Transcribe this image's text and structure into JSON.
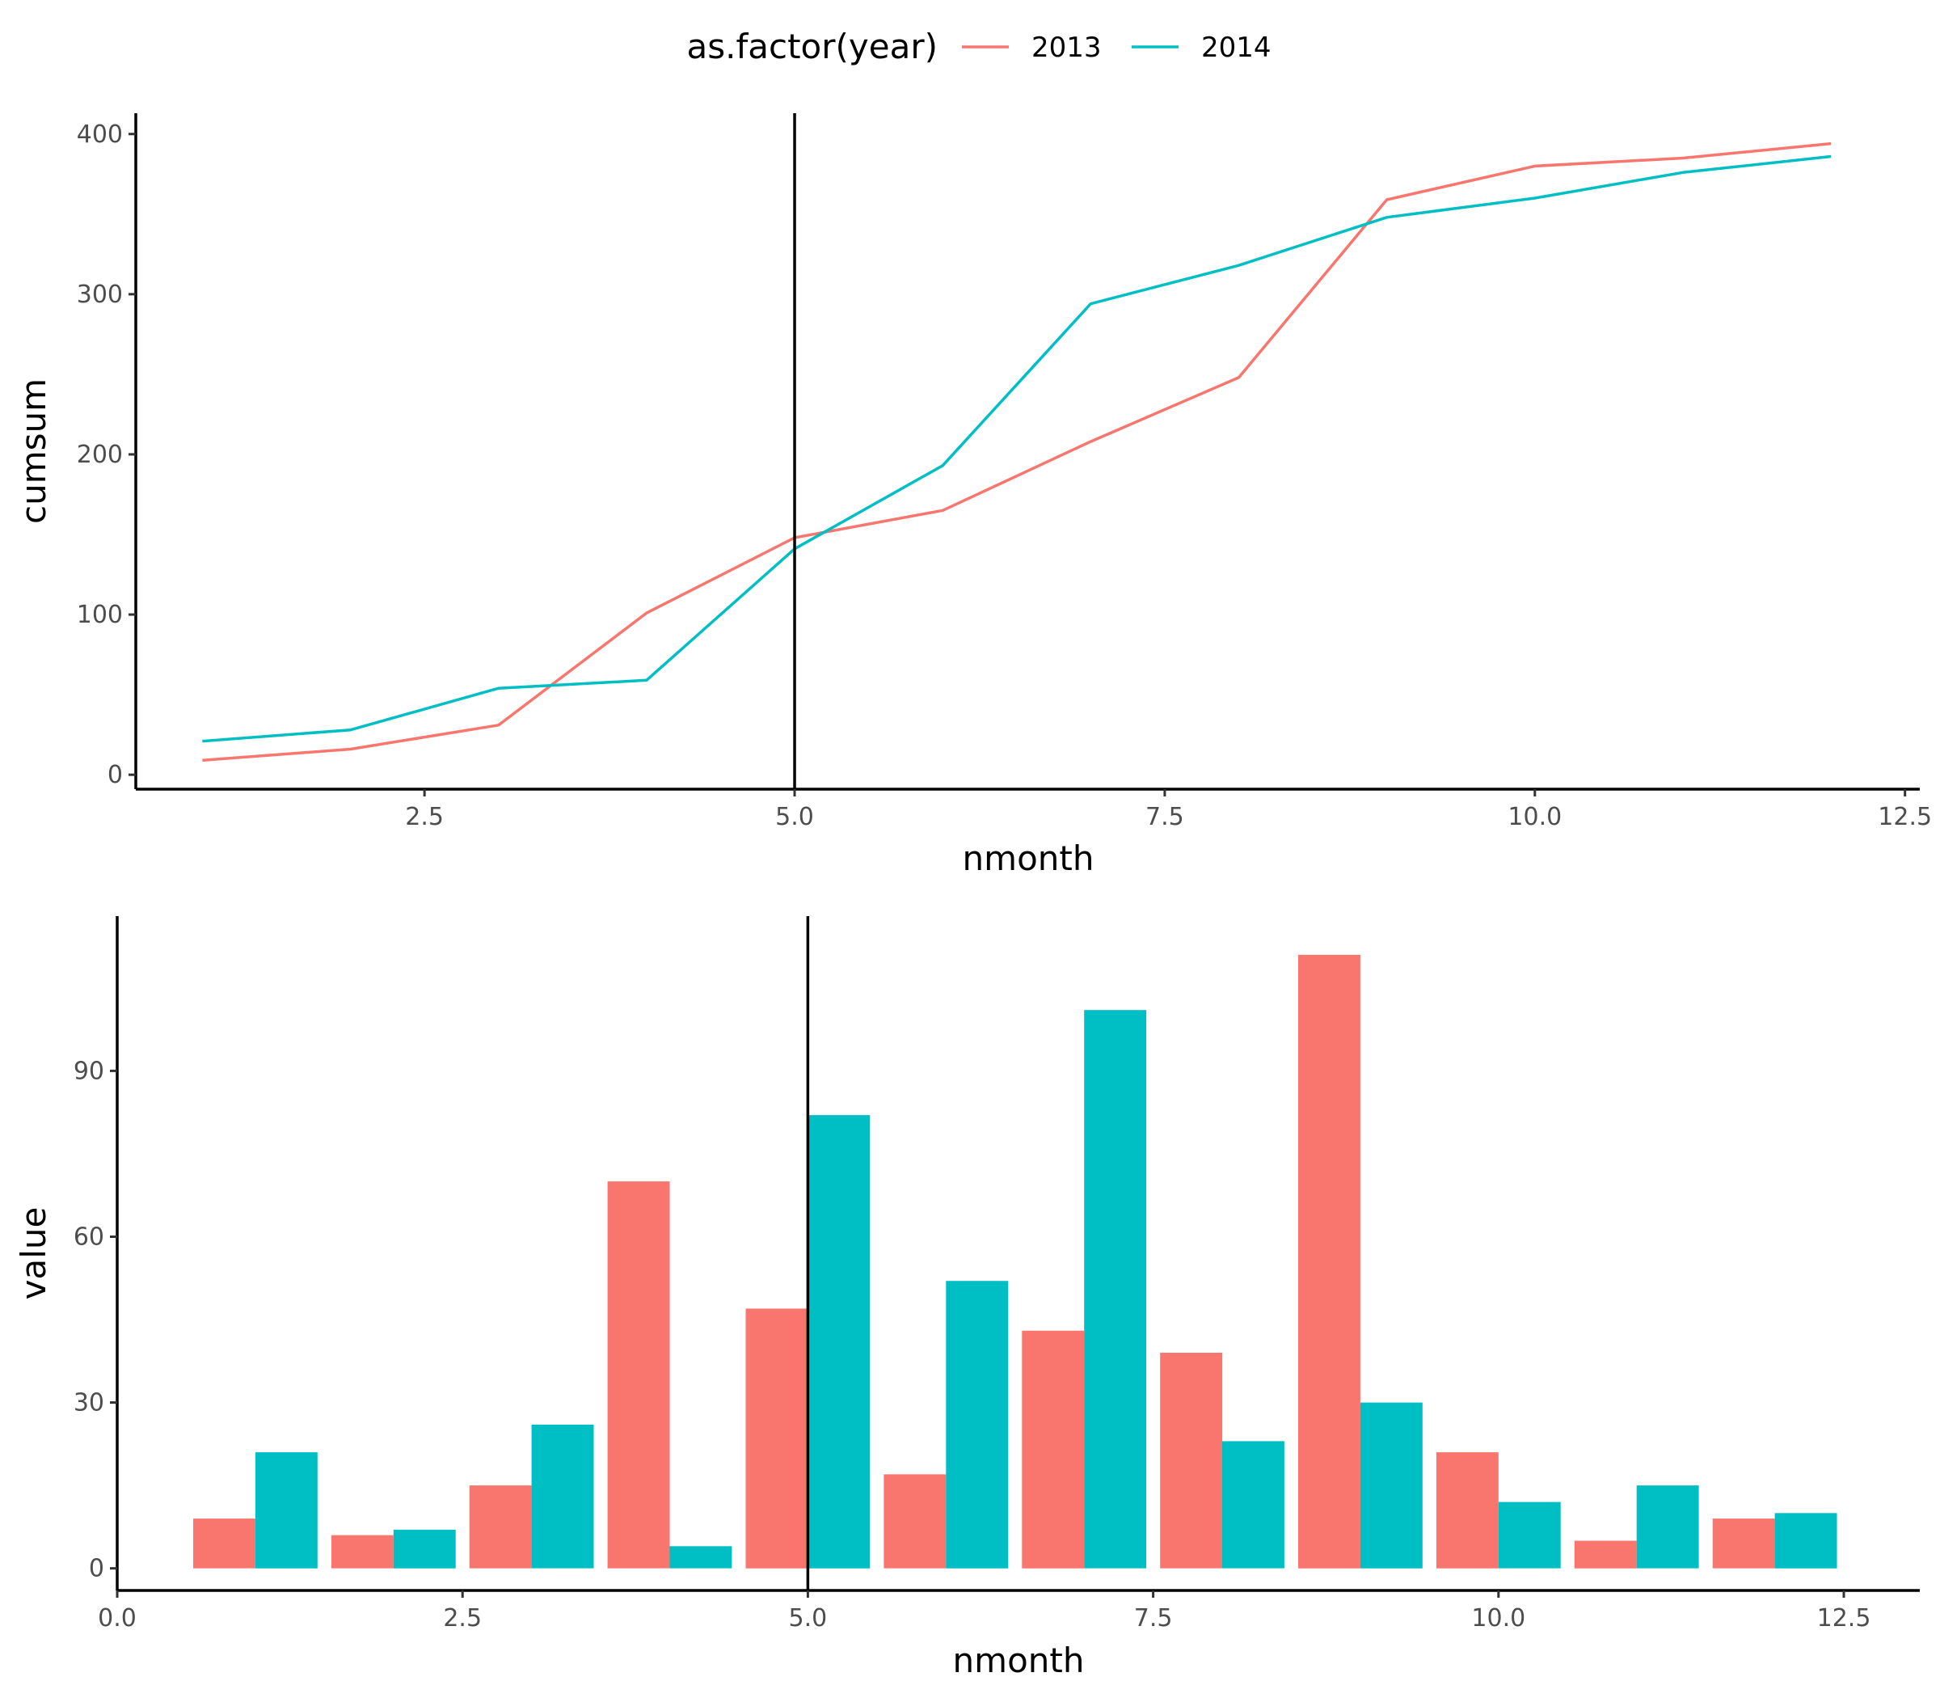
{
  "legend": {
    "title": "as.factor(year)",
    "entries": [
      {
        "label": "2013",
        "color": "#F8766D"
      },
      {
        "label": "2014",
        "color": "#00BFC4"
      }
    ]
  },
  "chart_data": [
    {
      "type": "line",
      "xlabel": "nmonth",
      "ylabel": "cumsum",
      "xlim": [
        0.55,
        12.6
      ],
      "ylim": [
        -9,
        413
      ],
      "xticks": [
        2.5,
        5.0,
        7.5,
        10.0,
        12.5
      ],
      "xtick_labels": [
        "2.5",
        "5.0",
        "7.5",
        "10.0",
        "12.5"
      ],
      "yticks": [
        0,
        100,
        200,
        300,
        400
      ],
      "ytick_labels": [
        "0",
        "100",
        "200",
        "300",
        "400"
      ],
      "vline": 5,
      "grid": false,
      "legend_position": "top",
      "x": [
        1,
        2,
        3,
        4,
        5,
        6,
        7,
        8,
        9,
        10,
        11,
        12
      ],
      "series": [
        {
          "name": "2013",
          "color": "#F8766D",
          "values": [
            9,
            16,
            31,
            101,
            148,
            165,
            208,
            248,
            359,
            380,
            385,
            394
          ]
        },
        {
          "name": "2014",
          "color": "#00BFC4",
          "values": [
            21,
            28,
            54,
            59,
            141,
            193,
            294,
            318,
            348,
            360,
            376,
            386
          ]
        }
      ]
    },
    {
      "type": "bar",
      "xlabel": "nmonth",
      "ylabel": "value",
      "xlim": [
        0,
        13.05
      ],
      "ylim": [
        -4,
        118
      ],
      "xticks": [
        0.0,
        2.5,
        5.0,
        7.5,
        10.0,
        12.5
      ],
      "xtick_labels": [
        "0.0",
        "2.5",
        "5.0",
        "7.5",
        "10.0",
        "12.5"
      ],
      "yticks": [
        0,
        30,
        60,
        90
      ],
      "ytick_labels": [
        "0",
        "30",
        "60",
        "90"
      ],
      "vline": 5,
      "grid": false,
      "bar_width": 0.9,
      "x": [
        1,
        2,
        3,
        4,
        5,
        6,
        7,
        8,
        9,
        10,
        11,
        12
      ],
      "series": [
        {
          "name": "2013",
          "color": "#F8766D",
          "values": [
            9,
            6,
            15,
            70,
            47,
            17,
            43,
            39,
            111,
            21,
            5,
            9
          ]
        },
        {
          "name": "2014",
          "color": "#00BFC4",
          "values": [
            21,
            7,
            26,
            4,
            82,
            52,
            101,
            23,
            30,
            12,
            15,
            10
          ]
        }
      ]
    }
  ]
}
